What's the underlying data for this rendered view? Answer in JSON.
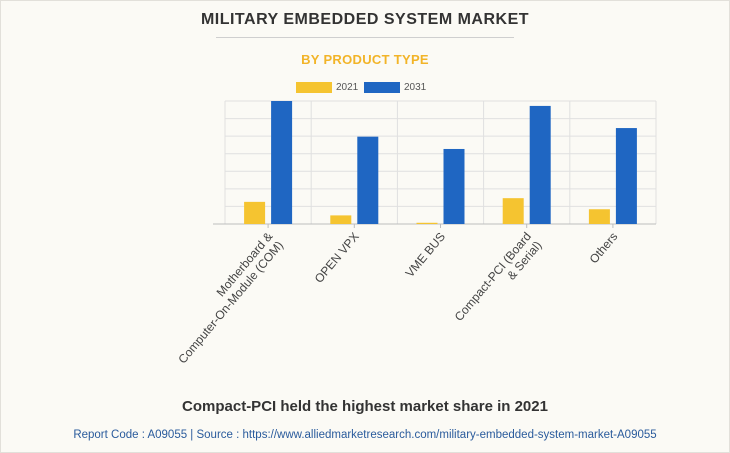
{
  "header": {
    "title": "MILITARY EMBEDDED SYSTEM MARKET",
    "subtitle": "BY PRODUCT TYPE"
  },
  "caption": "Compact-PCI held the highest market share in 2021",
  "footer": {
    "text": "Report Code : A09055  |  Source : https://www.alliedmarketresearch.com/military-embedded-system-market-A09055"
  },
  "colors": {
    "series_2021": "#f5c430",
    "series_2031": "#1f66c2",
    "subtitle": "#f2b428"
  },
  "chart_data": {
    "type": "bar",
    "categories": [
      [
        "Motherboard &",
        "Computer-On-Module (COM)"
      ],
      [
        "OPEN VPX"
      ],
      [
        "VME BUS"
      ],
      [
        "Compact-PCI (Board",
        "& Serial)"
      ],
      [
        "Others"
      ]
    ],
    "series": [
      {
        "name": "2021",
        "values": [
          18,
          7,
          1,
          21,
          12
        ]
      },
      {
        "name": "2031",
        "values": [
          100,
          71,
          61,
          96,
          78
        ]
      }
    ],
    "ylim": [
      0,
      100
    ],
    "y_ticks_shown": false,
    "grid": true,
    "legend": "top-center"
  }
}
